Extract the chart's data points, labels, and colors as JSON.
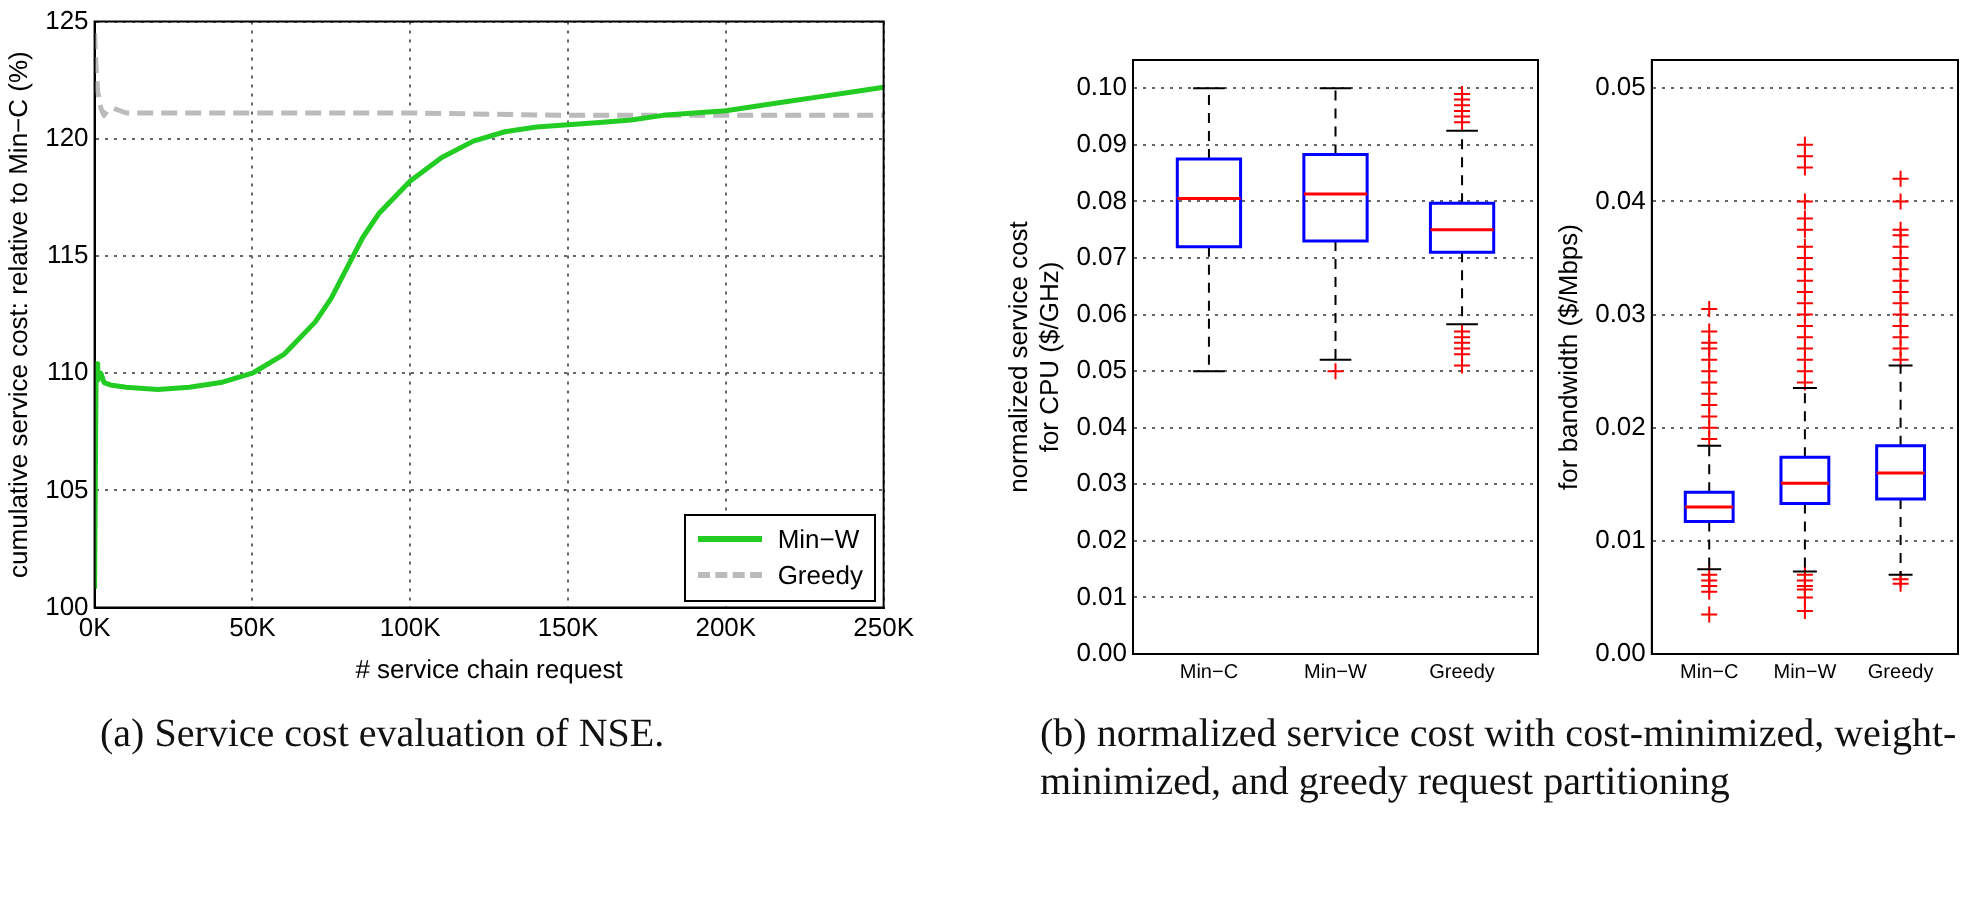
{
  "chart_data": [
    {
      "type": "line",
      "xlabel": "# service chain request",
      "ylabel": "cumulative service cost: relative to Min−C (%)",
      "annotations": [
        "(a) Service cost evaluation of NSE."
      ],
      "xlim": [
        0,
        250000
      ],
      "xticks": [
        {
          "value": 0,
          "label": "0K"
        },
        {
          "value": 50000,
          "label": "50K"
        },
        {
          "value": 100000,
          "label": "100K"
        },
        {
          "value": 150000,
          "label": "150K"
        },
        {
          "value": 200000,
          "label": "200K"
        },
        {
          "value": 250000,
          "label": "250K"
        }
      ],
      "ylim": [
        100,
        125
      ],
      "yticks": [
        100,
        105,
        110,
        115,
        120,
        125
      ],
      "grid": true,
      "legend": "bottom right",
      "marker": "none",
      "series": [
        {
          "name": "Min−W",
          "color": "#22cc22",
          "line_style": "solid",
          "x": [
            0,
            500,
            1000,
            2000,
            3000,
            5000,
            10000,
            20000,
            30000,
            40000,
            50000,
            60000,
            70000,
            75000,
            80000,
            85000,
            90000,
            100000,
            110000,
            120000,
            130000,
            140000,
            150000,
            160000,
            170000,
            180000,
            190000,
            200000,
            210000,
            220000,
            230000,
            240000,
            250000
          ],
          "values": [
            100.8,
            110.4,
            109.7,
            110.0,
            109.6,
            109.5,
            109.4,
            109.3,
            109.4,
            109.6,
            110.0,
            110.8,
            112.2,
            113.2,
            114.5,
            115.8,
            116.8,
            118.2,
            119.2,
            119.9,
            120.3,
            120.5,
            120.6,
            120.7,
            120.8,
            121.0,
            121.1,
            121.2,
            121.4,
            121.6,
            121.8,
            122.0,
            122.2
          ]
        },
        {
          "name": "Greedy",
          "color": "#bbbbbb",
          "line_style": "dashed",
          "x": [
            0,
            500,
            1000,
            2000,
            3000,
            4000,
            6000,
            10000,
            20000,
            50000,
            100000,
            150000,
            200000,
            250000
          ],
          "values": [
            124.5,
            123,
            122,
            121.3,
            121.0,
            121.2,
            121.3,
            121.1,
            121.1,
            121.1,
            121.1,
            121.0,
            121.0,
            121.0
          ]
        }
      ]
    },
    {
      "type": "box",
      "ylabel": "normalized service cost\nfor CPU ($/GHz)",
      "annotations": [
        "(b) normalized service cost with cost-minimized, weight-minimized, and greedy request partitioning"
      ],
      "categories": [
        "Min−C",
        "Min−W",
        "Greedy"
      ],
      "ylim": [
        0,
        0.105
      ],
      "yticks": [
        {
          "value": 0,
          "label": "0.00"
        },
        {
          "value": 0.01,
          "label": "0.01"
        },
        {
          "value": 0.02,
          "label": "0.02"
        },
        {
          "value": 0.03,
          "label": "0.03"
        },
        {
          "value": 0.04,
          "label": "0.04"
        },
        {
          "value": 0.05,
          "label": "0.05"
        },
        {
          "value": 0.06,
          "label": "0.06"
        },
        {
          "value": 0.07,
          "label": "0.07"
        },
        {
          "value": 0.08,
          "label": "0.08"
        },
        {
          "value": 0.09,
          "label": "0.09"
        },
        {
          "value": 0.1,
          "label": "0.10"
        }
      ],
      "grid": "y",
      "series": [
        {
          "color": "#0000ff",
          "boxes": [
            {
              "low": 0.05,
              "q1": 0.072,
              "median": 0.0805,
              "q3": 0.0875,
              "high": 0.1
            },
            {
              "low": 0.052,
              "q1": 0.073,
              "median": 0.0813,
              "q3": 0.0883,
              "high": 0.1,
              "outliers": [
                0.05
              ]
            },
            {
              "low": 0.0583,
              "q1": 0.071,
              "median": 0.075,
              "q3": 0.0797,
              "high": 0.0925,
              "outliers": [
                0.051,
                0.053,
                0.054,
                0.055,
                0.056,
                0.057,
                0.094,
                0.095,
                0.096,
                0.097,
                0.098,
                0.099
              ]
            }
          ]
        }
      ]
    },
    {
      "type": "box",
      "ylabel": "for bandwidth ($/Mbps)",
      "categories": [
        "Min−C",
        "Min−W",
        "Greedy"
      ],
      "ylim": [
        0,
        0.0525
      ],
      "yticks": [
        {
          "value": 0,
          "label": "0.00"
        },
        {
          "value": 0.01,
          "label": "0.01"
        },
        {
          "value": 0.02,
          "label": "0.02"
        },
        {
          "value": 0.03,
          "label": "0.03"
        },
        {
          "value": 0.04,
          "label": "0.04"
        },
        {
          "value": 0.05,
          "label": "0.05"
        }
      ],
      "grid": "y",
      "series": [
        {
          "color": "#0000ff",
          "boxes": [
            {
              "low": 0.0075,
              "q1": 0.0117,
              "median": 0.013,
              "q3": 0.0143,
              "high": 0.0184,
              "outliers": [
                0.0035,
                0.0055,
                0.006,
                0.0065,
                0.007,
                0.019,
                0.02,
                0.021,
                0.022,
                0.023,
                0.024,
                0.025,
                0.026,
                0.027,
                0.0275,
                0.0285,
                0.0305
              ]
            },
            {
              "low": 0.0073,
              "q1": 0.0133,
              "median": 0.0151,
              "q3": 0.0174,
              "high": 0.0235,
              "outliers": [
                0.0038,
                0.005,
                0.0057,
                0.006,
                0.0065,
                0.007,
                0.024,
                0.025,
                0.026,
                0.027,
                0.028,
                0.029,
                0.03,
                0.031,
                0.032,
                0.033,
                0.034,
                0.035,
                0.036,
                0.0375,
                0.0385,
                0.04,
                0.043,
                0.044,
                0.045
              ]
            },
            {
              "low": 0.007,
              "q1": 0.0137,
              "median": 0.016,
              "q3": 0.0184,
              "high": 0.0255,
              "outliers": [
                0.0062,
                0.0066,
                0.026,
                0.027,
                0.028,
                0.029,
                0.03,
                0.031,
                0.032,
                0.033,
                0.034,
                0.035,
                0.036,
                0.037,
                0.0375,
                0.04,
                0.042
              ]
            }
          ]
        }
      ]
    }
  ]
}
